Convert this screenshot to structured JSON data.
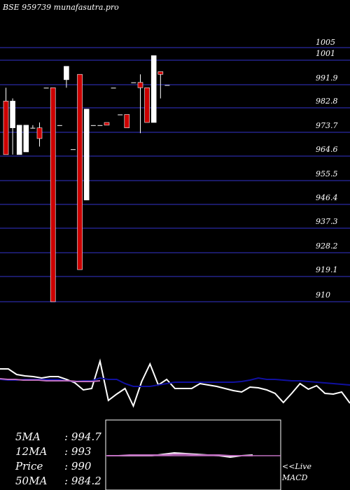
{
  "header": {
    "title": "BSE 959739 munafasutra.pro"
  },
  "colors": {
    "background": "#000000",
    "grid": "#1a1a66",
    "bull": "#ffffff",
    "bear": "#cc0000",
    "text": "#ffffff",
    "ma_fast": "#ffffff",
    "ma_slow": "#1010a0",
    "ma_mid": "#c070c0"
  },
  "chart_data": {
    "type": "candlestick",
    "price_axis_labels": [
      "1005",
      "1001",
      "991.9",
      "982.8",
      "973.7",
      "964.6",
      "955.5",
      "946.4",
      "937.3",
      "928.2",
      "919.1",
      "910"
    ],
    "ylim": [
      910,
      1005
    ],
    "candles": [
      {
        "o": 985,
        "h": 990,
        "l": 965,
        "c": 965
      },
      {
        "o": 975,
        "h": 986,
        "l": 965,
        "c": 985
      },
      {
        "o": 965,
        "h": 976,
        "l": 965,
        "c": 976
      },
      {
        "o": 966,
        "h": 976,
        "l": 966,
        "c": 976
      },
      {
        "o": 975,
        "h": 976,
        "l": 975,
        "c": 975
      },
      {
        "o": 975,
        "h": 977,
        "l": 968,
        "c": 971
      },
      {
        "o": 990,
        "h": 990,
        "l": 990,
        "c": 990
      },
      {
        "o": 990,
        "h": 990,
        "l": 910,
        "c": 910
      },
      {
        "o": 976,
        "h": 976,
        "l": 976,
        "c": 976
      },
      {
        "o": 993,
        "h": 998,
        "l": 990,
        "c": 998
      },
      {
        "o": 967,
        "h": 967,
        "l": 967,
        "c": 967
      },
      {
        "o": 995,
        "h": 995,
        "l": 922,
        "c": 922
      },
      {
        "o": 948,
        "h": 982,
        "l": 948,
        "c": 982
      },
      {
        "o": 976,
        "h": 976,
        "l": 976,
        "c": 976
      },
      {
        "o": 976,
        "h": 976,
        "l": 976,
        "c": 976
      },
      {
        "o": 977,
        "h": 977,
        "l": 976,
        "c": 976
      },
      {
        "o": 990,
        "h": 990,
        "l": 990,
        "c": 990
      },
      {
        "o": 980,
        "h": 980,
        "l": 980,
        "c": 980
      },
      {
        "o": 980,
        "h": 980,
        "l": 975,
        "c": 975
      },
      {
        "o": 992,
        "h": 992,
        "l": 992,
        "c": 992
      },
      {
        "o": 992,
        "h": 995,
        "l": 973,
        "c": 990
      },
      {
        "o": 990,
        "h": 990,
        "l": 977,
        "c": 977
      },
      {
        "o": 977,
        "h": 1002,
        "l": 977,
        "c": 1002
      },
      {
        "o": 996,
        "h": 996,
        "l": 986,
        "c": 995
      },
      {
        "o": 991,
        "h": 991,
        "l": 991,
        "c": 991
      }
    ],
    "indicator_panel": {
      "series": [
        {
          "values": [
            73,
            73,
            65,
            63,
            62,
            60,
            62,
            62,
            58,
            53,
            43,
            45,
            84,
            28,
            37,
            45,
            20,
            55,
            80,
            50,
            58,
            45,
            45,
            45,
            52,
            50,
            48,
            45,
            42,
            40,
            47,
            46,
            43,
            38,
            25,
            38,
            52,
            44,
            49,
            38,
            37,
            40,
            24
          ]
        },
        {
          "values": [
            58,
            57,
            57,
            58,
            58,
            58,
            58,
            58,
            56,
            55,
            56,
            56,
            60,
            58,
            58,
            52,
            48,
            48,
            48,
            50,
            52,
            54,
            54,
            54,
            54,
            54,
            54,
            54,
            54,
            55,
            57,
            60,
            58,
            58,
            57,
            56,
            56,
            55,
            54,
            53,
            52,
            51,
            50
          ]
        },
        {
          "values": [
            59,
            58,
            58,
            57,
            57,
            57,
            56,
            56,
            56,
            56,
            55,
            55,
            55,
            56
          ]
        }
      ]
    },
    "macd_panel": {
      "series": [
        {
          "values": [
            0,
            0,
            0,
            0,
            0,
            2,
            4,
            3,
            2,
            1,
            0,
            -2,
            0,
            1
          ]
        },
        {
          "values": [
            0,
            0,
            1,
            1,
            1,
            1,
            2,
            2,
            1,
            1,
            1,
            0,
            0,
            0
          ]
        }
      ]
    }
  },
  "indicators": [
    {
      "label": "5MA",
      "value": ": 994.7"
    },
    {
      "label": "12MA",
      "value": ": 993"
    },
    {
      "label": "Price",
      "value": ":  990"
    },
    {
      "label": "50MA",
      "value": ": 984.2"
    }
  ],
  "macd_label": {
    "line1": "<<Live",
    "line2": "MACD"
  }
}
